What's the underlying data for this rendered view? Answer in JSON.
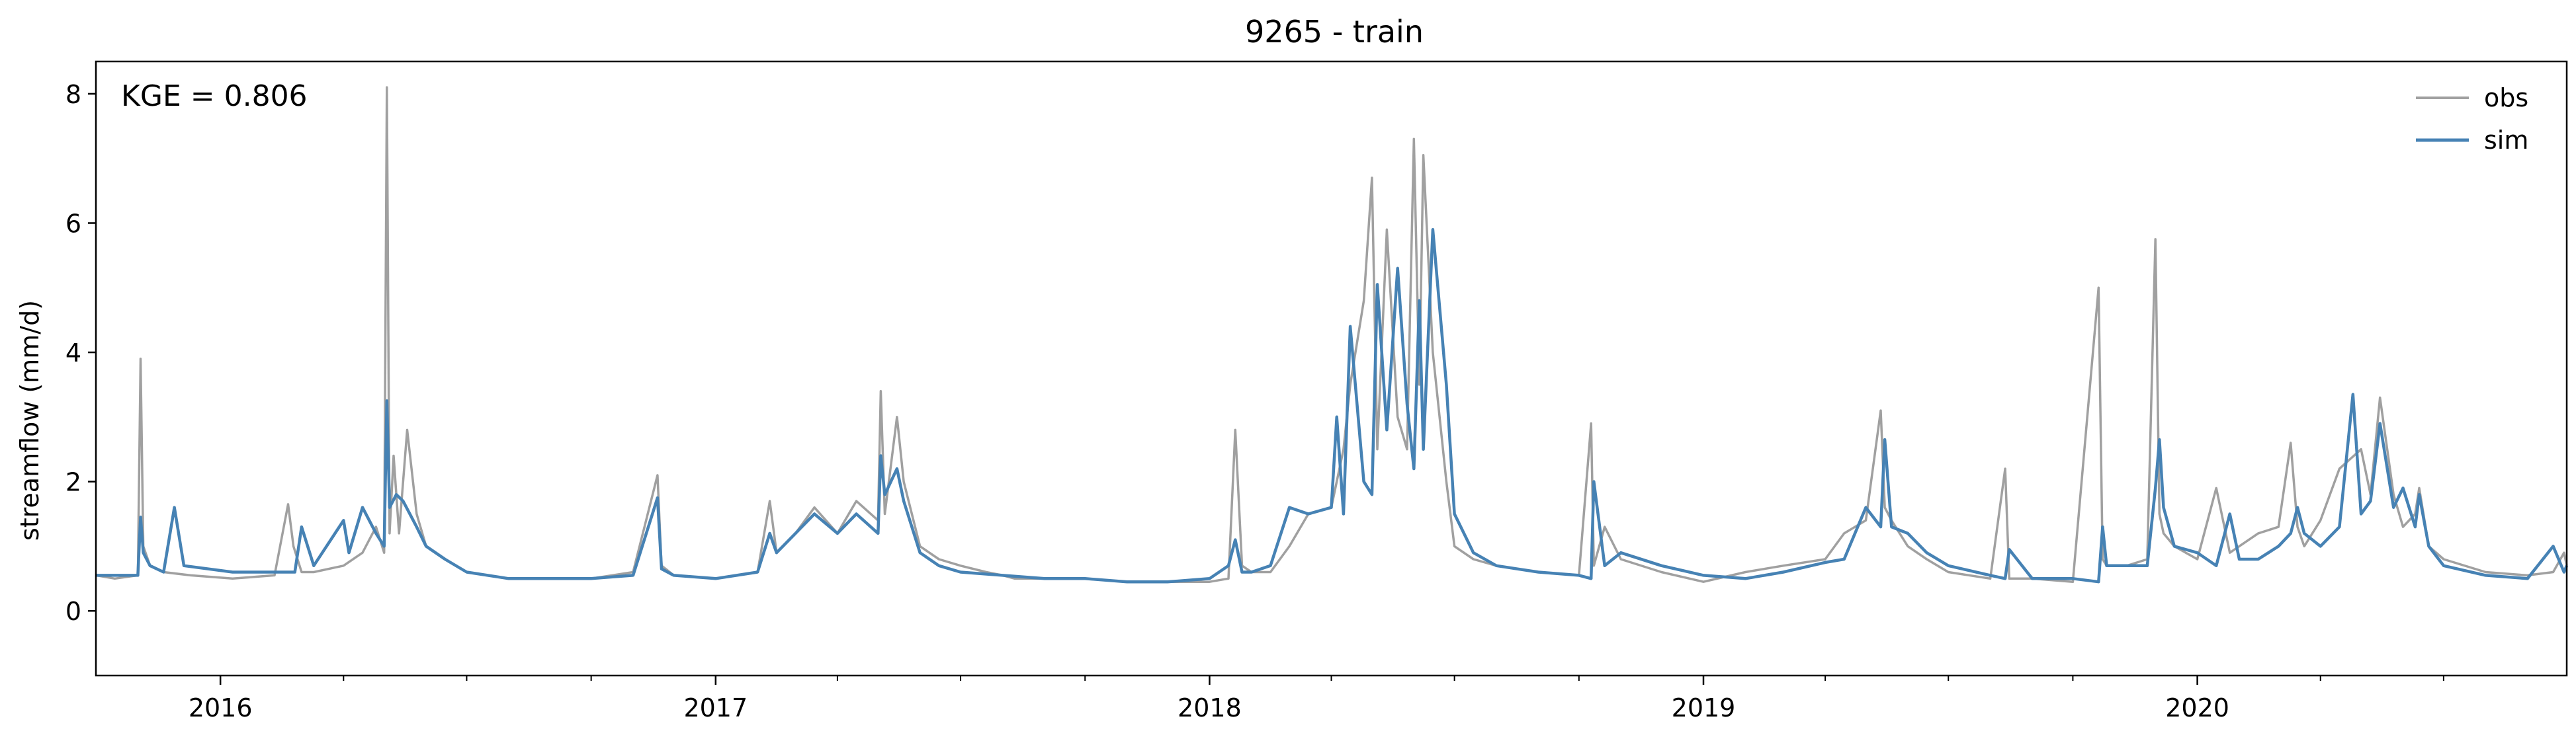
{
  "chart_data": {
    "type": "line",
    "title": "9265 - train",
    "xlabel": "",
    "ylabel": "streamflow (mm/d)",
    "annotation": "KGE = 0.806",
    "xlim": [
      "2015-10-01",
      "2020-09-30"
    ],
    "ylim": [
      -1,
      8.5
    ],
    "yticks": [
      0,
      2,
      4,
      6,
      8
    ],
    "xticks": [
      {
        "date": "2016-01-01",
        "label": "2016"
      },
      {
        "date": "2017-01-01",
        "label": "2017"
      },
      {
        "date": "2018-01-01",
        "label": "2018"
      },
      {
        "date": "2019-01-01",
        "label": "2019"
      },
      {
        "date": "2020-01-01",
        "label": "2020"
      }
    ],
    "minor_xticks": [
      "2016-04-01",
      "2016-07-01",
      "2016-10-01",
      "2017-04-01",
      "2017-07-01",
      "2017-10-01",
      "2018-04-01",
      "2018-07-01",
      "2018-10-01",
      "2019-04-01",
      "2019-07-01",
      "2019-10-01",
      "2020-04-01",
      "2020-07-01"
    ],
    "grid": false,
    "legend_position": "top-right",
    "series": [
      {
        "name": "obs",
        "color": "#a0a0a0",
        "x": [
          "2015-10-01",
          "2015-10-15",
          "2015-11-01",
          "2015-11-03",
          "2015-11-05",
          "2015-11-10",
          "2015-11-20",
          "2015-12-10",
          "2016-01-10",
          "2016-02-10",
          "2016-02-20",
          "2016-02-24",
          "2016-03-01",
          "2016-03-10",
          "2016-04-01",
          "2016-04-15",
          "2016-04-25",
          "2016-05-01",
          "2016-05-03",
          "2016-05-05",
          "2016-05-08",
          "2016-05-12",
          "2016-05-18",
          "2016-05-25",
          "2016-06-01",
          "2016-06-15",
          "2016-07-01",
          "2016-08-01",
          "2016-09-01",
          "2016-10-01",
          "2016-11-01",
          "2016-11-19",
          "2016-11-22",
          "2016-12-01",
          "2017-01-01",
          "2017-02-01",
          "2017-02-10",
          "2017-02-15",
          "2017-03-01",
          "2017-03-15",
          "2017-04-01",
          "2017-04-15",
          "2017-05-01",
          "2017-05-03",
          "2017-05-06",
          "2017-05-15",
          "2017-05-20",
          "2017-06-01",
          "2017-06-15",
          "2017-07-01",
          "2017-07-20",
          "2017-08-01",
          "2017-08-10",
          "2017-09-01",
          "2017-10-01",
          "2017-11-01",
          "2017-12-01",
          "2018-01-01",
          "2018-01-15",
          "2018-01-20",
          "2018-01-25",
          "2018-02-01",
          "2018-02-15",
          "2018-03-01",
          "2018-03-15",
          "2018-04-01",
          "2018-04-10",
          "2018-04-15",
          "2018-04-25",
          "2018-05-01",
          "2018-05-05",
          "2018-05-12",
          "2018-05-20",
          "2018-05-27",
          "2018-06-01",
          "2018-06-05",
          "2018-06-08",
          "2018-06-15",
          "2018-06-25",
          "2018-07-01",
          "2018-07-15",
          "2018-08-01",
          "2018-09-01",
          "2018-10-01",
          "2018-10-10",
          "2018-10-12",
          "2018-10-20",
          "2018-11-01",
          "2018-12-01",
          "2019-01-01",
          "2019-02-01",
          "2019-03-01",
          "2019-04-01",
          "2019-04-15",
          "2019-05-01",
          "2019-05-12",
          "2019-05-15",
          "2019-05-20",
          "2019-06-01",
          "2019-06-15",
          "2019-07-01",
          "2019-08-01",
          "2019-08-12",
          "2019-08-15",
          "2019-09-01",
          "2019-10-01",
          "2019-10-20",
          "2019-10-23",
          "2019-10-26",
          "2019-11-10",
          "2019-11-25",
          "2019-12-01",
          "2019-12-04",
          "2019-12-07",
          "2019-12-15",
          "2020-01-01",
          "2020-01-15",
          "2020-01-25",
          "2020-02-01",
          "2020-02-15",
          "2020-03-01",
          "2020-03-10",
          "2020-03-15",
          "2020-03-20",
          "2020-04-01",
          "2020-04-15",
          "2020-05-01",
          "2020-05-08",
          "2020-05-15",
          "2020-05-25",
          "2020-06-01",
          "2020-06-10",
          "2020-06-13",
          "2020-06-20",
          "2020-07-01",
          "2020-08-01",
          "2020-09-01",
          "2020-09-20",
          "2020-09-28",
          "2020-09-30"
        ],
        "y": [
          0.55,
          0.5,
          0.55,
          3.9,
          1.0,
          0.7,
          0.6,
          0.55,
          0.5,
          0.55,
          1.65,
          1.0,
          0.6,
          0.6,
          0.7,
          0.9,
          1.3,
          0.9,
          8.1,
          1.2,
          2.4,
          1.2,
          2.8,
          1.5,
          1.0,
          0.8,
          0.6,
          0.5,
          0.5,
          0.5,
          0.6,
          2.1,
          0.7,
          0.55,
          0.5,
          0.6,
          1.7,
          0.9,
          1.2,
          1.6,
          1.2,
          1.7,
          1.4,
          3.4,
          1.5,
          3.0,
          2.0,
          1.0,
          0.8,
          0.7,
          0.6,
          0.55,
          0.5,
          0.5,
          0.5,
          0.45,
          0.45,
          0.45,
          0.5,
          2.8,
          0.7,
          0.6,
          0.6,
          1.0,
          1.5,
          1.6,
          2.5,
          3.5,
          4.8,
          6.7,
          2.5,
          5.9,
          3.0,
          2.5,
          7.3,
          3.5,
          7.05,
          4.0,
          2.0,
          1.0,
          0.8,
          0.7,
          0.6,
          0.55,
          2.9,
          0.7,
          1.3,
          0.8,
          0.6,
          0.45,
          0.6,
          0.7,
          0.8,
          1.2,
          1.4,
          3.1,
          1.6,
          1.4,
          1.0,
          0.8,
          0.6,
          0.5,
          2.2,
          0.5,
          0.5,
          0.45,
          5.0,
          0.8,
          0.7,
          0.7,
          0.8,
          5.75,
          1.5,
          1.2,
          1.0,
          0.8,
          1.9,
          0.9,
          1.0,
          1.2,
          1.3,
          2.6,
          1.3,
          1.0,
          1.4,
          2.2,
          2.5,
          1.8,
          3.3,
          1.8,
          1.3,
          1.5,
          1.9,
          1.0,
          0.8,
          0.6,
          0.55,
          0.6,
          0.9,
          0.7
        ]
      },
      {
        "name": "sim",
        "color": "#4682b4",
        "x": [
          "2015-10-01",
          "2015-10-15",
          "2015-11-01",
          "2015-11-03",
          "2015-11-05",
          "2015-11-10",
          "2015-11-20",
          "2015-11-28",
          "2015-12-05",
          "2016-01-10",
          "2016-02-10",
          "2016-02-25",
          "2016-03-01",
          "2016-03-10",
          "2016-04-01",
          "2016-04-05",
          "2016-04-15",
          "2016-04-25",
          "2016-05-01",
          "2016-05-03",
          "2016-05-05",
          "2016-05-10",
          "2016-05-15",
          "2016-05-25",
          "2016-06-01",
          "2016-06-15",
          "2016-07-01",
          "2016-08-01",
          "2016-09-01",
          "2016-10-01",
          "2016-11-01",
          "2016-11-19",
          "2016-11-22",
          "2016-12-01",
          "2017-01-01",
          "2017-02-01",
          "2017-02-10",
          "2017-02-15",
          "2017-03-01",
          "2017-03-15",
          "2017-04-01",
          "2017-04-15",
          "2017-05-01",
          "2017-05-03",
          "2017-05-06",
          "2017-05-15",
          "2017-05-20",
          "2017-06-01",
          "2017-06-15",
          "2017-07-01",
          "2017-08-01",
          "2017-09-01",
          "2017-10-01",
          "2017-11-01",
          "2017-12-01",
          "2018-01-01",
          "2018-01-15",
          "2018-01-20",
          "2018-01-25",
          "2018-02-01",
          "2018-02-15",
          "2018-03-01",
          "2018-03-15",
          "2018-04-01",
          "2018-04-05",
          "2018-04-10",
          "2018-04-15",
          "2018-04-25",
          "2018-05-01",
          "2018-05-05",
          "2018-05-12",
          "2018-05-20",
          "2018-05-27",
          "2018-06-01",
          "2018-06-05",
          "2018-06-08",
          "2018-06-15",
          "2018-06-25",
          "2018-07-01",
          "2018-07-15",
          "2018-08-01",
          "2018-09-01",
          "2018-10-01",
          "2018-10-10",
          "2018-10-12",
          "2018-10-20",
          "2018-11-01",
          "2018-12-01",
          "2019-01-01",
          "2019-02-01",
          "2019-03-01",
          "2019-04-01",
          "2019-04-15",
          "2019-05-01",
          "2019-05-12",
          "2019-05-15",
          "2019-05-20",
          "2019-06-01",
          "2019-06-15",
          "2019-07-01",
          "2019-08-01",
          "2019-08-12",
          "2019-08-15",
          "2019-09-01",
          "2019-10-01",
          "2019-10-20",
          "2019-10-23",
          "2019-10-26",
          "2019-11-10",
          "2019-11-25",
          "2019-12-01",
          "2019-12-04",
          "2019-12-07",
          "2019-12-15",
          "2020-01-01",
          "2020-01-15",
          "2020-01-25",
          "2020-02-01",
          "2020-02-15",
          "2020-03-01",
          "2020-03-10",
          "2020-03-15",
          "2020-03-20",
          "2020-04-01",
          "2020-04-15",
          "2020-04-25",
          "2020-05-01",
          "2020-05-08",
          "2020-05-15",
          "2020-05-25",
          "2020-06-01",
          "2020-06-10",
          "2020-06-13",
          "2020-06-20",
          "2020-07-01",
          "2020-08-01",
          "2020-09-01",
          "2020-09-20",
          "2020-09-28",
          "2020-09-30"
        ],
        "y": [
          0.55,
          0.55,
          0.55,
          1.45,
          0.9,
          0.7,
          0.6,
          1.6,
          0.7,
          0.6,
          0.6,
          0.6,
          1.3,
          0.7,
          1.4,
          0.9,
          1.6,
          1.2,
          1.0,
          3.25,
          1.6,
          1.8,
          1.7,
          1.3,
          1.0,
          0.8,
          0.6,
          0.5,
          0.5,
          0.5,
          0.55,
          1.75,
          0.65,
          0.55,
          0.5,
          0.6,
          1.2,
          0.9,
          1.2,
          1.5,
          1.2,
          1.5,
          1.2,
          2.4,
          1.8,
          2.2,
          1.7,
          0.9,
          0.7,
          0.6,
          0.55,
          0.5,
          0.5,
          0.45,
          0.45,
          0.5,
          0.7,
          1.1,
          0.6,
          0.6,
          0.7,
          1.6,
          1.5,
          1.6,
          3.0,
          1.5,
          4.4,
          2.0,
          1.8,
          5.05,
          2.8,
          5.3,
          3.2,
          2.2,
          4.8,
          2.5,
          5.9,
          3.5,
          1.5,
          0.9,
          0.7,
          0.6,
          0.55,
          0.5,
          2.0,
          0.7,
          0.9,
          0.7,
          0.55,
          0.5,
          0.6,
          0.75,
          0.8,
          1.6,
          1.3,
          2.65,
          1.3,
          1.2,
          0.9,
          0.7,
          0.55,
          0.5,
          0.95,
          0.5,
          0.5,
          0.45,
          1.3,
          0.7,
          0.7,
          0.7,
          1.9,
          2.65,
          1.6,
          1.0,
          0.9,
          0.7,
          1.5,
          0.8,
          0.8,
          1.0,
          1.2,
          1.6,
          1.2,
          1.0,
          1.3,
          3.35,
          1.5,
          1.7,
          2.9,
          1.6,
          1.9,
          1.3,
          1.8,
          1.0,
          0.7,
          0.55,
          0.5,
          1.0,
          0.6,
          0.7
        ]
      }
    ]
  }
}
